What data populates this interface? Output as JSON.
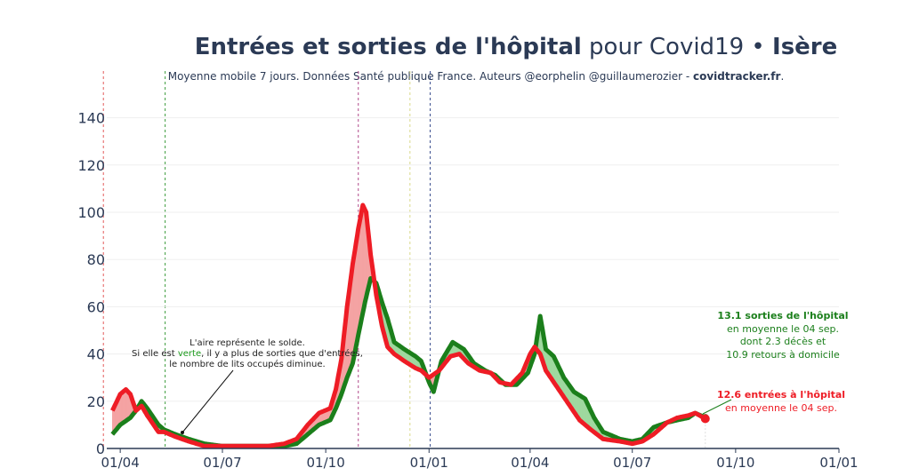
{
  "header": {
    "title_bold": "Entrées et sorties de l'hôpital",
    "title_mid": " pour Covid19 • ",
    "title_region": "Isère",
    "subtitle_main": "Moyenne mobile 7 jours. Données Santé publique France. Auteurs @eorphelin @guillaumerozier - ",
    "subtitle_site": "covidtracker.fr",
    "subtitle_end": "."
  },
  "annotation": {
    "line1": "L'aire représente le solde.",
    "line2_a": "Si elle est ",
    "line2_green": "verte",
    "line2_b": ", il y a plus de sorties que d'entrées,",
    "line3": "le nombre de lits occupés diminue."
  },
  "callout_exits": {
    "line1": "13.1 sorties de l'hôpital",
    "line2": "en moyenne le 04 sep.",
    "line3": "dont 2.3 décès et",
    "line4": "10.9 retours à domicile"
  },
  "callout_entries": {
    "line1": "12.6 entrées à l'hôpital",
    "line2": "en moyenne le 04 sep."
  },
  "colors": {
    "entries": "#ee1c25",
    "exits": "#1b7f1b",
    "area_red": "#f4a3a3",
    "area_green": "#9fd89f",
    "title": "#2b3a55",
    "axis": "#2b3a55"
  },
  "chart_data": {
    "type": "line",
    "x_start": "2020-03-25",
    "x_end": "2021-09-04",
    "xlim": [
      "2020-03-20",
      "2022-01-01"
    ],
    "ylim": [
      0,
      150
    ],
    "y_ticks": [
      0,
      20,
      40,
      60,
      80,
      100,
      120,
      140
    ],
    "x_ticks": [
      {
        "date": "2020-04-01",
        "label": "01/04"
      },
      {
        "date": "2020-07-01",
        "label": "01/07"
      },
      {
        "date": "2020-10-01",
        "label": "01/10"
      },
      {
        "date": "2021-01-01",
        "label": "01/01"
      },
      {
        "date": "2021-04-01",
        "label": "01/04"
      },
      {
        "date": "2021-07-01",
        "label": "01/07"
      },
      {
        "date": "2021-10-01",
        "label": "01/10"
      },
      {
        "date": "2022-01-01",
        "label": "01/01"
      }
    ],
    "vlines": [
      {
        "date": "2020-03-17",
        "color": "#e35b5b"
      },
      {
        "date": "2020-05-11",
        "color": "#3a9a3a"
      },
      {
        "date": "2020-10-30",
        "color": "#b04a8a"
      },
      {
        "date": "2020-12-15",
        "color": "#d9d98a"
      },
      {
        "date": "2021-01-02",
        "color": "#3b4f8f"
      }
    ],
    "series": [
      {
        "key": "entries",
        "keyframes": [
          [
            "2020-03-25",
            16
          ],
          [
            "2020-04-01",
            23
          ],
          [
            "2020-04-06",
            25
          ],
          [
            "2020-04-10",
            23
          ],
          [
            "2020-04-15",
            16
          ],
          [
            "2020-04-20",
            18
          ],
          [
            "2020-04-25",
            14
          ],
          [
            "2020-05-05",
            7
          ],
          [
            "2020-05-10",
            7
          ],
          [
            "2020-05-20",
            5
          ],
          [
            "2020-06-01",
            3
          ],
          [
            "2020-06-15",
            1
          ],
          [
            "2020-07-01",
            1
          ],
          [
            "2020-07-20",
            1
          ],
          [
            "2020-08-10",
            1
          ],
          [
            "2020-08-25",
            2
          ],
          [
            "2020-09-05",
            4
          ],
          [
            "2020-09-15",
            10
          ],
          [
            "2020-09-25",
            15
          ],
          [
            "2020-10-05",
            17
          ],
          [
            "2020-10-10",
            25
          ],
          [
            "2020-10-15",
            38
          ],
          [
            "2020-10-20",
            60
          ],
          [
            "2020-10-25",
            78
          ],
          [
            "2020-10-30",
            93
          ],
          [
            "2020-11-03",
            103
          ],
          [
            "2020-11-06",
            100
          ],
          [
            "2020-11-10",
            82
          ],
          [
            "2020-11-15",
            65
          ],
          [
            "2020-11-20",
            52
          ],
          [
            "2020-11-25",
            43
          ],
          [
            "2020-12-01",
            40
          ],
          [
            "2020-12-10",
            37
          ],
          [
            "2020-12-20",
            34
          ],
          [
            "2020-12-25",
            33
          ],
          [
            "2021-01-01",
            30
          ],
          [
            "2021-01-10",
            33
          ],
          [
            "2021-01-20",
            39
          ],
          [
            "2021-01-28",
            40
          ],
          [
            "2021-02-05",
            36
          ],
          [
            "2021-02-15",
            33
          ],
          [
            "2021-02-25",
            32
          ],
          [
            "2021-03-05",
            28
          ],
          [
            "2021-03-15",
            27
          ],
          [
            "2021-03-25",
            32
          ],
          [
            "2021-04-01",
            40
          ],
          [
            "2021-04-05",
            43
          ],
          [
            "2021-04-10",
            40
          ],
          [
            "2021-04-15",
            33
          ],
          [
            "2021-04-25",
            26
          ],
          [
            "2021-05-05",
            19
          ],
          [
            "2021-05-15",
            12
          ],
          [
            "2021-05-25",
            8
          ],
          [
            "2021-06-05",
            4
          ],
          [
            "2021-06-20",
            3
          ],
          [
            "2021-07-01",
            2
          ],
          [
            "2021-07-10",
            3
          ],
          [
            "2021-07-20",
            6
          ],
          [
            "2021-08-01",
            11
          ],
          [
            "2021-08-10",
            13
          ],
          [
            "2021-08-20",
            14
          ],
          [
            "2021-08-26",
            15
          ],
          [
            "2021-09-04",
            12.6
          ]
        ]
      },
      {
        "key": "exits",
        "keyframes": [
          [
            "2020-03-25",
            6
          ],
          [
            "2020-04-01",
            10
          ],
          [
            "2020-04-10",
            13
          ],
          [
            "2020-04-15",
            16
          ],
          [
            "2020-04-20",
            20
          ],
          [
            "2020-04-25",
            17
          ],
          [
            "2020-05-05",
            10
          ],
          [
            "2020-05-10",
            8
          ],
          [
            "2020-05-20",
            6
          ],
          [
            "2020-06-01",
            4
          ],
          [
            "2020-06-15",
            2
          ],
          [
            "2020-07-01",
            1
          ],
          [
            "2020-07-20",
            1
          ],
          [
            "2020-08-10",
            1
          ],
          [
            "2020-08-25",
            1
          ],
          [
            "2020-09-05",
            2
          ],
          [
            "2020-09-15",
            6
          ],
          [
            "2020-09-25",
            10
          ],
          [
            "2020-10-05",
            12
          ],
          [
            "2020-10-10",
            17
          ],
          [
            "2020-10-15",
            23
          ],
          [
            "2020-10-20",
            30
          ],
          [
            "2020-10-25",
            36
          ],
          [
            "2020-10-30",
            48
          ],
          [
            "2020-11-05",
            62
          ],
          [
            "2020-11-10",
            72
          ],
          [
            "2020-11-15",
            70
          ],
          [
            "2020-11-20",
            62
          ],
          [
            "2020-11-25",
            55
          ],
          [
            "2020-12-01",
            45
          ],
          [
            "2020-12-10",
            42
          ],
          [
            "2020-12-20",
            39
          ],
          [
            "2020-12-25",
            37
          ],
          [
            "2021-01-01",
            28
          ],
          [
            "2021-01-05",
            24
          ],
          [
            "2021-01-12",
            37
          ],
          [
            "2021-01-22",
            45
          ],
          [
            "2021-02-01",
            42
          ],
          [
            "2021-02-10",
            36
          ],
          [
            "2021-02-20",
            33
          ],
          [
            "2021-03-01",
            31
          ],
          [
            "2021-03-10",
            27
          ],
          [
            "2021-03-20",
            27
          ],
          [
            "2021-03-30",
            32
          ],
          [
            "2021-04-05",
            40
          ],
          [
            "2021-04-10",
            56
          ],
          [
            "2021-04-15",
            42
          ],
          [
            "2021-04-22",
            39
          ],
          [
            "2021-05-01",
            30
          ],
          [
            "2021-05-10",
            24
          ],
          [
            "2021-05-20",
            21
          ],
          [
            "2021-05-28",
            13
          ],
          [
            "2021-06-05",
            7
          ],
          [
            "2021-06-20",
            4
          ],
          [
            "2021-07-01",
            3
          ],
          [
            "2021-07-10",
            4
          ],
          [
            "2021-07-20",
            9
          ],
          [
            "2021-08-01",
            11
          ],
          [
            "2021-08-10",
            12
          ],
          [
            "2021-08-20",
            13
          ],
          [
            "2021-08-26",
            15
          ],
          [
            "2021-09-04",
            13.1
          ]
        ]
      }
    ]
  }
}
